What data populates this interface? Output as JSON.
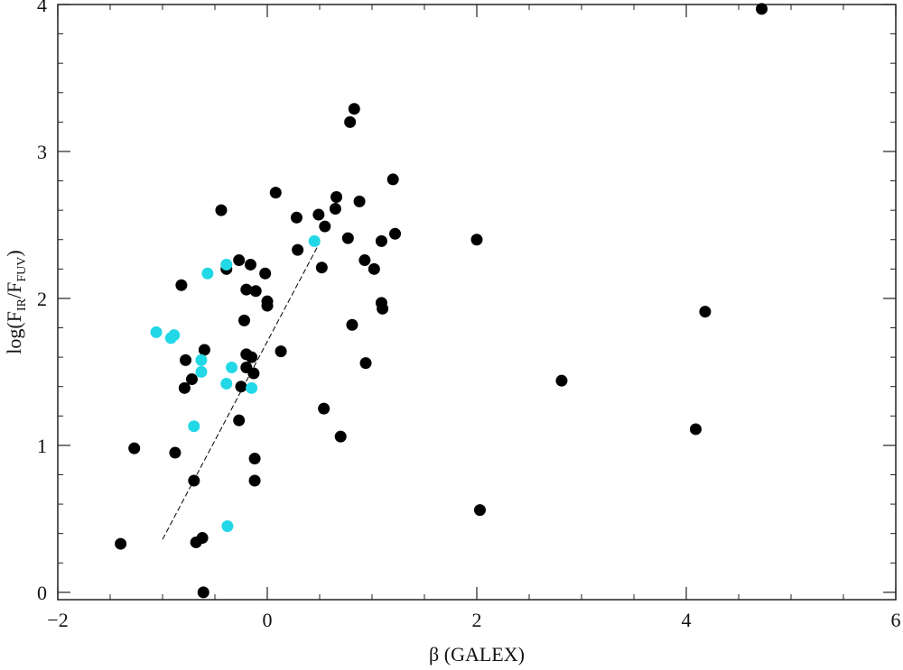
{
  "chart_data": {
    "type": "scatter",
    "xlabel": "β (GALEX)",
    "ylabel": "log(F_IR/F_FUV)",
    "ylabel_parts": {
      "pre": "log(F",
      "sub1": "IR",
      "mid": "/F",
      "sub2": "FUV",
      "post": ")"
    },
    "xlim": [
      -2,
      6
    ],
    "ylim": [
      -0.05,
      4
    ],
    "xticks": [
      -2,
      0,
      2,
      4,
      6
    ],
    "yticks": [
      0,
      1,
      2,
      3,
      4
    ],
    "xtick_labels": [
      "−2",
      "0",
      "2",
      "4",
      "6"
    ],
    "ytick_labels": [
      "0",
      "1",
      "2",
      "3",
      "4"
    ],
    "grid": false,
    "colors": {
      "black_points": "#000000",
      "cyan_points": "#22d8e6",
      "fit_line": "#000000"
    },
    "series": [
      {
        "color": "#000000",
        "points": [
          [
            -1.4,
            0.33
          ],
          [
            -1.27,
            0.98
          ],
          [
            -0.88,
            0.95
          ],
          [
            -0.82,
            2.09
          ],
          [
            -0.79,
            1.39
          ],
          [
            -0.78,
            1.58
          ],
          [
            -0.72,
            1.45
          ],
          [
            -0.7,
            0.76
          ],
          [
            -0.68,
            0.34
          ],
          [
            -0.62,
            0.37
          ],
          [
            -0.6,
            1.65
          ],
          [
            -0.61,
            0.0
          ],
          [
            -0.44,
            2.6
          ],
          [
            -0.39,
            2.2
          ],
          [
            -0.27,
            2.26
          ],
          [
            -0.27,
            1.17
          ],
          [
            -0.25,
            1.4
          ],
          [
            -0.22,
            1.85
          ],
          [
            -0.2,
            2.06
          ],
          [
            -0.2,
            1.62
          ],
          [
            -0.2,
            1.53
          ],
          [
            -0.16,
            2.23
          ],
          [
            -0.15,
            1.6
          ],
          [
            -0.13,
            1.49
          ],
          [
            -0.11,
            2.05
          ],
          [
            -0.12,
            0.91
          ],
          [
            -0.12,
            0.76
          ],
          [
            -0.02,
            2.17
          ],
          [
            0.0,
            1.98
          ],
          [
            0.0,
            1.95
          ],
          [
            0.08,
            2.72
          ],
          [
            0.13,
            1.64
          ],
          [
            0.28,
            2.55
          ],
          [
            0.29,
            2.33
          ],
          [
            0.49,
            2.57
          ],
          [
            0.52,
            2.21
          ],
          [
            0.54,
            1.25
          ],
          [
            0.55,
            2.49
          ],
          [
            0.65,
            2.61
          ],
          [
            0.66,
            2.69
          ],
          [
            0.7,
            1.06
          ],
          [
            0.77,
            2.41
          ],
          [
            0.79,
            3.2
          ],
          [
            0.83,
            3.29
          ],
          [
            0.88,
            2.66
          ],
          [
            0.93,
            2.26
          ],
          [
            0.94,
            1.56
          ],
          [
            1.02,
            2.2
          ],
          [
            0.81,
            1.82
          ],
          [
            1.09,
            2.39
          ],
          [
            1.09,
            1.97
          ],
          [
            1.1,
            1.93
          ],
          [
            1.2,
            2.81
          ],
          [
            1.22,
            2.44
          ],
          [
            2.0,
            2.4
          ],
          [
            2.03,
            0.56
          ],
          [
            2.81,
            1.44
          ],
          [
            4.09,
            1.11
          ],
          [
            4.18,
            1.91
          ],
          [
            4.72,
            3.97
          ]
        ]
      },
      {
        "color": "#22d8e6",
        "points": [
          [
            -1.06,
            1.77
          ],
          [
            -0.92,
            1.73
          ],
          [
            -0.89,
            1.75
          ],
          [
            -0.7,
            1.13
          ],
          [
            -0.63,
            1.5
          ],
          [
            -0.63,
            1.58
          ],
          [
            -0.57,
            2.17
          ],
          [
            -0.39,
            2.23
          ],
          [
            -0.39,
            1.42
          ],
          [
            -0.34,
            1.53
          ],
          [
            -0.38,
            0.45
          ],
          [
            -0.15,
            1.39
          ],
          [
            0.45,
            2.39
          ]
        ]
      }
    ],
    "fit_line": {
      "x": [
        -1.0,
        0.5
      ],
      "y": [
        0.36,
        2.38
      ],
      "style": "dashed"
    }
  }
}
